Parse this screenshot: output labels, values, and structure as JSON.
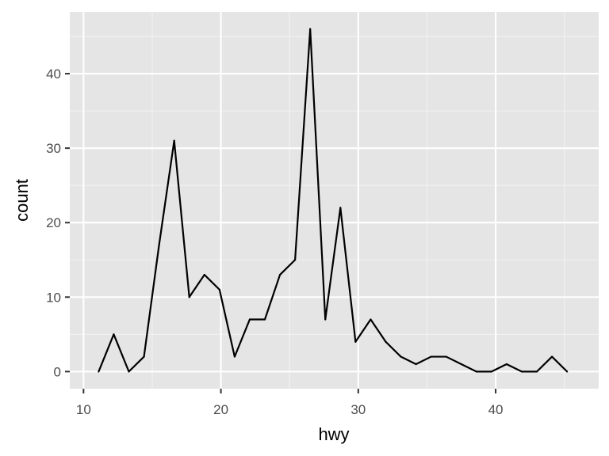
{
  "chart_data": {
    "type": "line",
    "title": "",
    "xlabel": "hwy",
    "ylabel": "count",
    "xlim": [
      9.0,
      47.5
    ],
    "ylim": [
      -2.3,
      48.3
    ],
    "x_ticks": [
      10,
      20,
      30,
      40
    ],
    "y_ticks": [
      0,
      10,
      20,
      30,
      40
    ],
    "x_tick_labels": [
      "10",
      "20",
      "30",
      "40"
    ],
    "y_tick_labels": [
      "0",
      "10",
      "20",
      "30",
      "40"
    ],
    "grid": true,
    "legend": "none",
    "colors": {
      "panel_background": "#e5e5e5",
      "grid_major": "#ffffff",
      "grid_minor": "#f2f2f2",
      "line": "#000000",
      "tick": "#333333"
    },
    "series": [
      {
        "x": [
          11.1,
          12.2,
          13.3,
          14.4,
          15.5,
          16.6,
          17.7,
          18.8,
          19.9,
          21.0,
          22.1,
          23.2,
          24.3,
          25.4,
          26.5,
          27.6,
          28.7,
          29.8,
          30.9,
          32.0,
          33.1,
          34.2,
          35.3,
          36.4,
          37.5,
          38.6,
          39.7,
          40.8,
          41.9,
          43.0,
          44.1,
          45.2
        ],
        "values": [
          0,
          5,
          0,
          2,
          17,
          31,
          10,
          13,
          11,
          2,
          7,
          7,
          13,
          15,
          46,
          7,
          22,
          4,
          7,
          4,
          2,
          1,
          2,
          2,
          1,
          0,
          0,
          1,
          0,
          0,
          2,
          0
        ]
      }
    ]
  }
}
